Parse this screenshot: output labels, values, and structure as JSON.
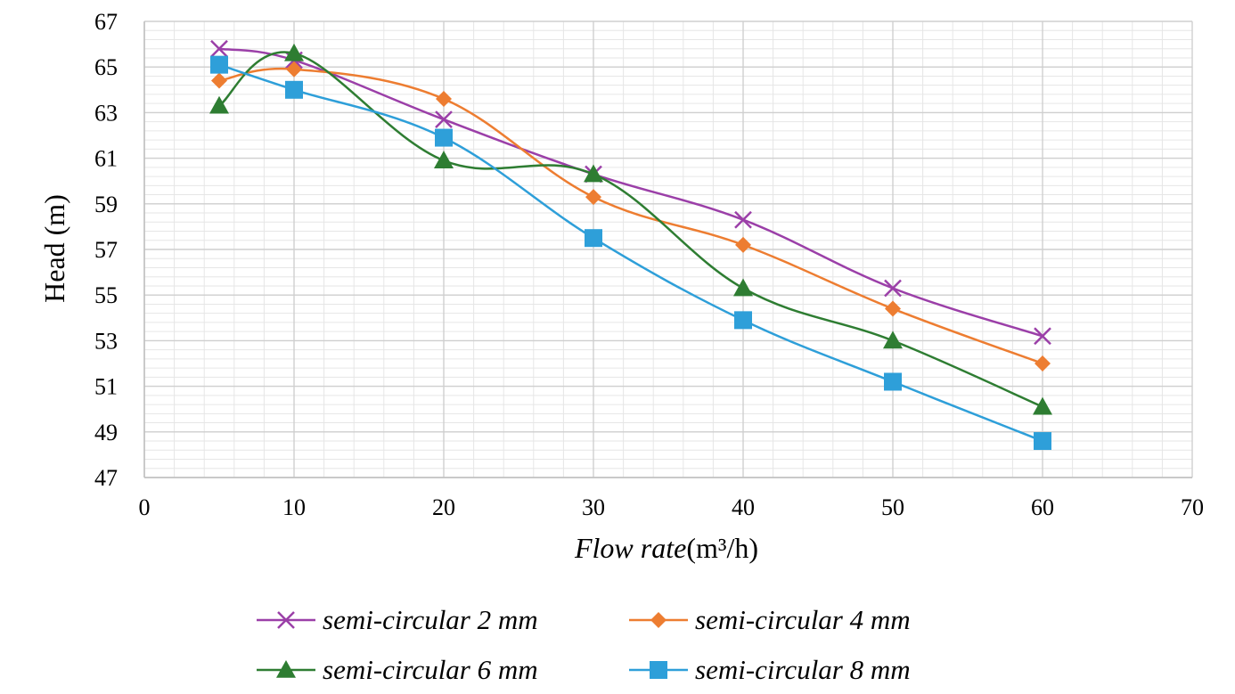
{
  "chart_data": {
    "type": "line",
    "xlabel_italic": "Flow rate",
    "xlabel_units": "(m³/h)",
    "ylabel": "Head (m)",
    "xlim": [
      0,
      70
    ],
    "ylim": [
      47,
      67
    ],
    "x_ticks": [
      "0",
      "10",
      "20",
      "30",
      "40",
      "50",
      "60",
      "70"
    ],
    "y_ticks": [
      "47",
      "49",
      "51",
      "53",
      "55",
      "57",
      "59",
      "61",
      "63",
      "65",
      "67"
    ],
    "grid": true,
    "legend_position": "bottom",
    "series": [
      {
        "name": "semi-circular 2 mm",
        "color": "#9b3fa8",
        "marker": "x",
        "x": [
          5,
          10,
          20,
          30,
          40,
          50,
          60
        ],
        "y": [
          65.8,
          65.3,
          62.7,
          60.3,
          58.3,
          55.3,
          53.2
        ]
      },
      {
        "name": "semi-circular 4 mm",
        "color": "#ed7d31",
        "marker": "diamond",
        "x": [
          5,
          10,
          20,
          30,
          40,
          50,
          60
        ],
        "y": [
          64.4,
          64.9,
          63.6,
          59.3,
          57.2,
          54.4,
          52.0
        ]
      },
      {
        "name": "semi-circular 6 mm",
        "color": "#2e7d32",
        "marker": "triangle",
        "x": [
          5,
          10,
          20,
          30,
          40,
          50,
          60
        ],
        "y": [
          63.3,
          65.6,
          60.9,
          60.3,
          55.3,
          53.0,
          50.1
        ]
      },
      {
        "name": "semi-circular 8 mm",
        "color": "#2e9fd9",
        "marker": "square",
        "x": [
          5,
          10,
          20,
          30,
          40,
          50,
          60
        ],
        "y": [
          65.1,
          64.0,
          61.9,
          57.5,
          53.9,
          51.2,
          48.6
        ]
      }
    ]
  }
}
